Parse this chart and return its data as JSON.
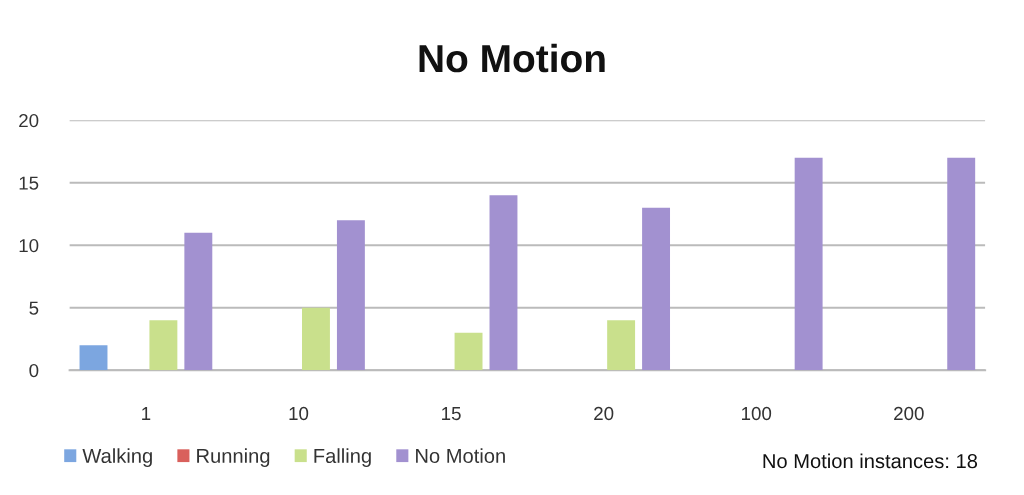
{
  "chart_data": {
    "type": "bar",
    "title": "No Motion",
    "categories": [
      "1",
      "10",
      "15",
      "20",
      "100",
      "200"
    ],
    "series": [
      {
        "name": "Walking",
        "color": "#7ca6e0",
        "values": [
          2,
          0,
          0,
          0,
          0,
          0
        ]
      },
      {
        "name": "Running",
        "color": "#d9605c",
        "values": [
          0,
          0,
          0,
          0,
          0,
          0
        ]
      },
      {
        "name": "Falling",
        "color": "#c9e08c",
        "values": [
          4,
          5,
          3,
          4,
          0,
          0
        ]
      },
      {
        "name": "No Motion",
        "color": "#a291d0",
        "values": [
          11,
          12,
          14,
          13,
          17,
          17
        ]
      }
    ],
    "ylim": [
      0,
      20
    ],
    "yticks": [
      0,
      5,
      10,
      15,
      20
    ],
    "grid": "y",
    "legend": "bottom",
    "annotations": [
      "No Motion instances: 18"
    ]
  }
}
